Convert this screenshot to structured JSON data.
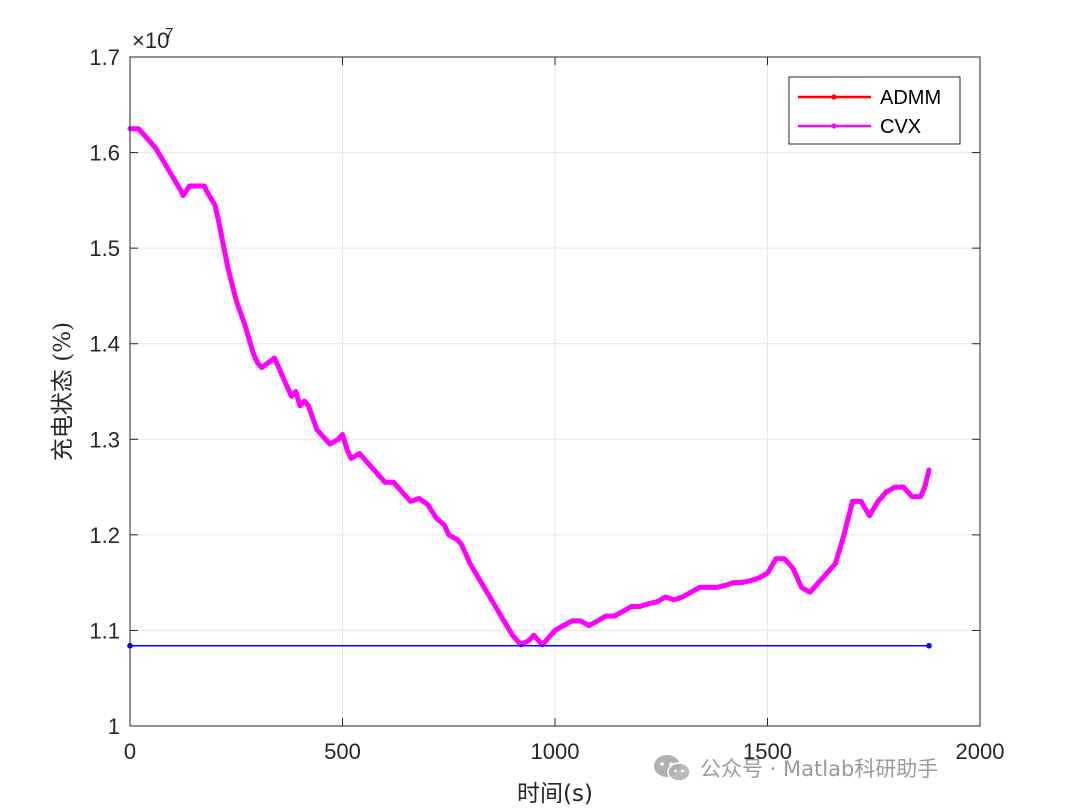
{
  "chart_data": {
    "type": "line",
    "xlabel": "时间(s)",
    "ylabel": "充电状态 (%)",
    "xlim": [
      0,
      2000
    ],
    "ylim": [
      1.0,
      1.7
    ],
    "y_multiplier": "×10^7",
    "y_multiplier_base": "×10",
    "y_multiplier_exp": "7",
    "x_ticks": [
      0,
      500,
      1000,
      1500,
      2000
    ],
    "y_ticks": [
      1,
      1.1,
      1.2,
      1.3,
      1.4,
      1.5,
      1.6,
      1.7
    ],
    "grid": true,
    "legend_position": "top-right",
    "series": [
      {
        "name": "ADMM",
        "color": "#ff0000",
        "x": [
          0,
          1880
        ],
        "y": [
          1.084,
          1.084
        ]
      },
      {
        "name": "CVX",
        "color": "#ff00ff",
        "x": [
          0,
          20,
          40,
          60,
          80,
          100,
          120,
          125,
          140,
          175,
          180,
          200,
          210,
          230,
          250,
          270,
          290,
          300,
          310,
          340,
          350,
          360,
          380,
          390,
          400,
          410,
          420,
          440,
          450,
          470,
          490,
          500,
          510,
          520,
          540,
          560,
          580,
          600,
          620,
          640,
          650,
          660,
          680,
          700,
          710,
          720,
          740,
          750,
          770,
          780,
          800,
          820,
          840,
          860,
          880,
          900,
          920,
          940,
          950,
          960,
          970,
          980,
          1000,
          1020,
          1040,
          1060,
          1080,
          1100,
          1120,
          1140,
          1160,
          1180,
          1200,
          1220,
          1240,
          1260,
          1280,
          1300,
          1320,
          1340,
          1360,
          1380,
          1400,
          1420,
          1440,
          1460,
          1480,
          1500,
          1520,
          1540,
          1550,
          1560,
          1580,
          1600,
          1620,
          1640,
          1660,
          1680,
          1700,
          1720,
          1740,
          1760,
          1780,
          1800,
          1820,
          1840,
          1860,
          1870,
          1880
        ],
        "y": [
          1.625,
          1.625,
          1.615,
          1.605,
          1.59,
          1.575,
          1.56,
          1.555,
          1.565,
          1.565,
          1.56,
          1.545,
          1.525,
          1.48,
          1.445,
          1.42,
          1.39,
          1.38,
          1.375,
          1.385,
          1.375,
          1.365,
          1.345,
          1.35,
          1.335,
          1.34,
          1.335,
          1.31,
          1.305,
          1.295,
          1.3,
          1.305,
          1.29,
          1.28,
          1.285,
          1.275,
          1.265,
          1.255,
          1.255,
          1.245,
          1.24,
          1.235,
          1.238,
          1.232,
          1.225,
          1.218,
          1.21,
          1.2,
          1.195,
          1.19,
          1.17,
          1.155,
          1.14,
          1.125,
          1.11,
          1.095,
          1.085,
          1.09,
          1.095,
          1.09,
          1.085,
          1.09,
          1.1,
          1.105,
          1.11,
          1.11,
          1.105,
          1.11,
          1.115,
          1.115,
          1.12,
          1.125,
          1.125,
          1.128,
          1.13,
          1.135,
          1.132,
          1.135,
          1.14,
          1.145,
          1.145,
          1.145,
          1.147,
          1.15,
          1.15,
          1.152,
          1.155,
          1.16,
          1.175,
          1.175,
          1.17,
          1.165,
          1.145,
          1.14,
          1.15,
          1.16,
          1.17,
          1.2,
          1.235,
          1.235,
          1.22,
          1.235,
          1.245,
          1.25,
          1.25,
          1.24,
          1.24,
          1.25,
          1.268
        ]
      }
    ]
  },
  "watermark": {
    "text": "公众号 · Matlab科研助手"
  }
}
